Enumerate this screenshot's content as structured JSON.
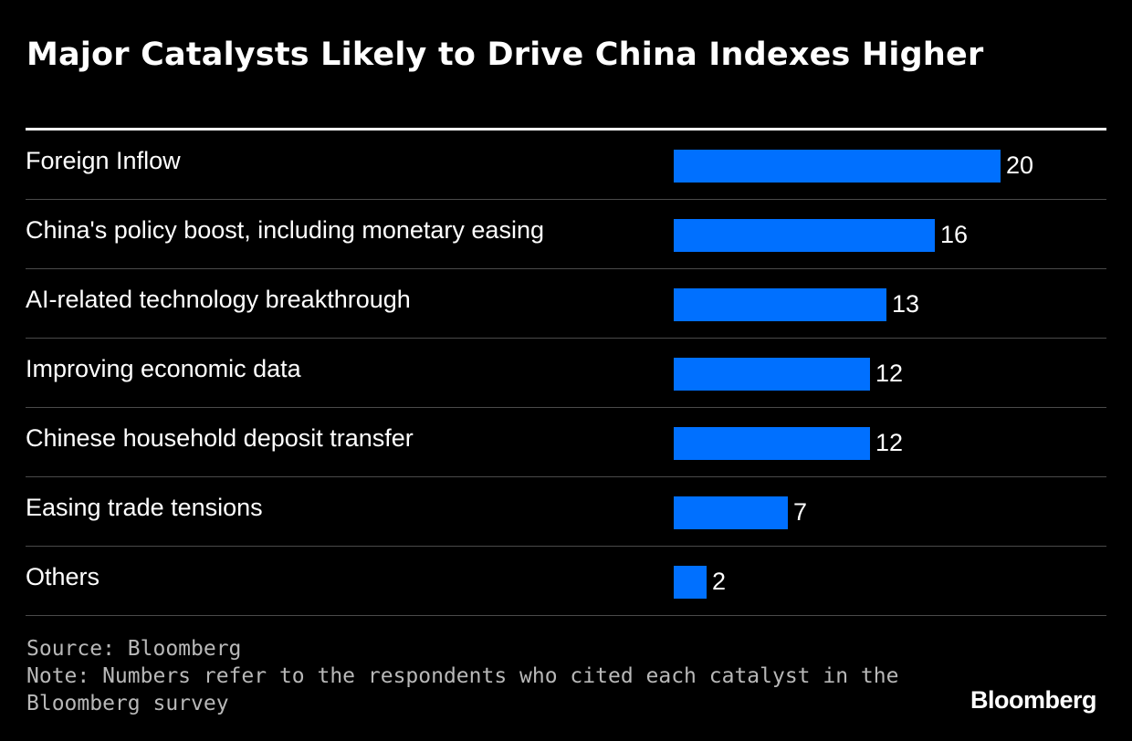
{
  "chart_data": {
    "type": "bar",
    "orientation": "horizontal",
    "title": "Major Catalysts Likely to Drive China Indexes Higher",
    "categories": [
      "Foreign Inflow",
      "China's policy boost, including monetary easing",
      "AI-related technology breakthrough",
      "Improving economic data",
      "Chinese household deposit transfer",
      "Easing trade tensions",
      "Others"
    ],
    "values": [
      20,
      16,
      13,
      12,
      12,
      7,
      2
    ],
    "xlim": [
      0,
      20
    ],
    "grid": false,
    "legend": "none",
    "bar_color": "#0070ff",
    "data_labels": true
  },
  "footer": {
    "source": "Source: Bloomberg",
    "note_line1": "Note: Numbers refer to the respondents who cited each catalyst in the",
    "note_line2": "Bloomberg survey",
    "brand": "Bloomberg"
  },
  "colors": {
    "background": "#000000",
    "text": "#ffffff",
    "bar": "#0070ff",
    "footnote": "#b8b8b8",
    "divider": "#4a4a4a"
  }
}
